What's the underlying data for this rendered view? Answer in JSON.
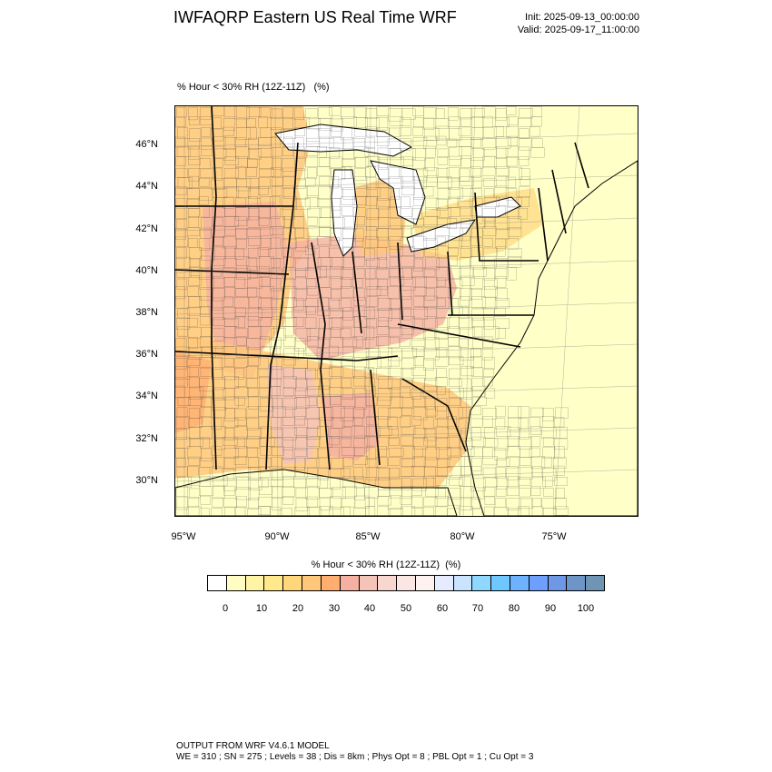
{
  "header": {
    "title": "IWFAQRP Eastern US Real Time WRF",
    "init": "Init: 2025-09-13_00:00:00",
    "valid": "Valid: 2025-09-17_11:00:00"
  },
  "plot": {
    "field_label": "% Hour < 30% RH (12Z-11Z)   (%)"
  },
  "map": {
    "background_color": "#ffffc8",
    "lat_ticks": [
      "46°N",
      "44°N",
      "42°N",
      "40°N",
      "38°N",
      "36°N",
      "34°N",
      "32°N",
      "30°N"
    ],
    "lon_ticks": [
      "95°W",
      "90°W",
      "85°W",
      "80°W",
      "75°W"
    ]
  },
  "colorbar": {
    "title": "% Hour < 30% RH (12Z-11Z)  (%)",
    "colors": [
      "#ffffff",
      "#fffcc4",
      "#fff4a6",
      "#ffe98a",
      "#ffd67a",
      "#ffc77a",
      "#ffae70",
      "#f5b0a2",
      "#f5c4b8",
      "#f8d7cf",
      "#fae6e2",
      "#fdf2f0",
      "#e6ecff",
      "#c8e4ff",
      "#8ed8ff",
      "#6ec8ff",
      "#6eb2ff",
      "#6e9fff",
      "#6e98e6",
      "#6e95c8",
      "#7095b4"
    ],
    "tick_labels": [
      "0",
      "10",
      "20",
      "30",
      "40",
      "50",
      "60",
      "70",
      "80",
      "90",
      "100"
    ]
  },
  "footer": {
    "line1": "OUTPUT FROM WRF V4.6.1 MODEL",
    "line2": "WE = 310 ; SN = 275 ; Levels = 38 ; Dis = 8km ; Phys Opt = 8 ; PBL Opt = 1 ; Cu Opt = 3"
  }
}
